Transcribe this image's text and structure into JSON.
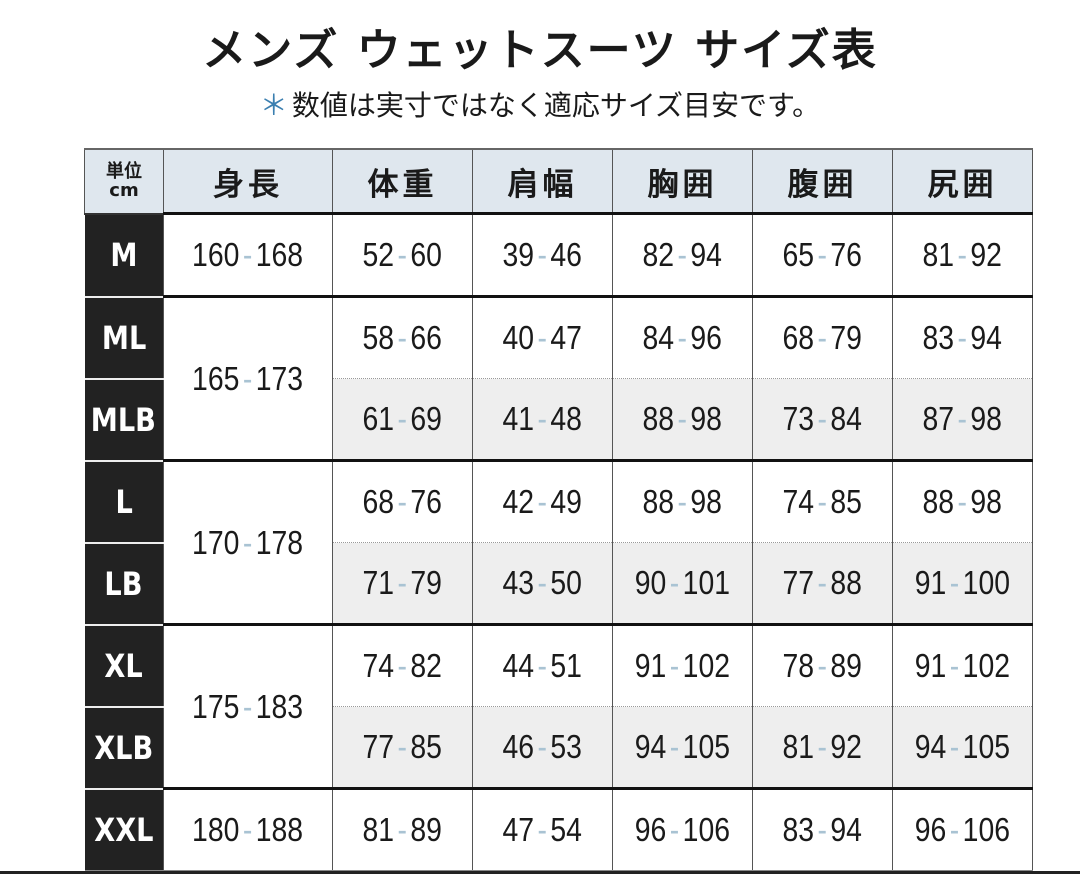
{
  "title": "メンズ ウェットスーツ サイズ表",
  "note": {
    "asterisk": "＊",
    "text": "数値は実寸ではなく適応サイズ目安です。"
  },
  "colors": {
    "size_cell_bg": "#222222",
    "header_bg": "#dfe7ee",
    "dash": "#a9c3d3",
    "sub_row_bg": "#eeeeee"
  },
  "header": {
    "unit_line1": "単位",
    "unit_line2": "cm",
    "columns": [
      "身長",
      "体重",
      "肩幅",
      "胸囲",
      "腹囲",
      "尻囲"
    ]
  },
  "rows": [
    {
      "size": "M",
      "height": {
        "lo": "160",
        "hi": "168"
      },
      "values": [
        {
          "lo": "52",
          "hi": "60"
        },
        {
          "lo": "39",
          "hi": "46"
        },
        {
          "lo": "82",
          "hi": "94"
        },
        {
          "lo": "65",
          "hi": "76"
        },
        {
          "lo": "81",
          "hi": "92"
        }
      ]
    },
    {
      "size": "ML",
      "height": {
        "lo": "165",
        "hi": "173"
      },
      "values": [
        {
          "lo": "58",
          "hi": "66"
        },
        {
          "lo": "40",
          "hi": "47"
        },
        {
          "lo": "84",
          "hi": "96"
        },
        {
          "lo": "68",
          "hi": "79"
        },
        {
          "lo": "83",
          "hi": "94"
        }
      ]
    },
    {
      "size": "MLB",
      "values": [
        {
          "lo": "61",
          "hi": "69"
        },
        {
          "lo": "41",
          "hi": "48"
        },
        {
          "lo": "88",
          "hi": "98"
        },
        {
          "lo": "73",
          "hi": "84"
        },
        {
          "lo": "87",
          "hi": "98"
        }
      ]
    },
    {
      "size": "L",
      "height": {
        "lo": "170",
        "hi": "178"
      },
      "values": [
        {
          "lo": "68",
          "hi": "76"
        },
        {
          "lo": "42",
          "hi": "49"
        },
        {
          "lo": "88",
          "hi": "98"
        },
        {
          "lo": "74",
          "hi": "85"
        },
        {
          "lo": "88",
          "hi": "98"
        }
      ]
    },
    {
      "size": "LB",
      "values": [
        {
          "lo": "71",
          "hi": "79"
        },
        {
          "lo": "43",
          "hi": "50"
        },
        {
          "lo": "90",
          "hi": "101"
        },
        {
          "lo": "77",
          "hi": "88"
        },
        {
          "lo": "91",
          "hi": "100"
        }
      ]
    },
    {
      "size": "XL",
      "height": {
        "lo": "175",
        "hi": "183"
      },
      "values": [
        {
          "lo": "74",
          "hi": "82"
        },
        {
          "lo": "44",
          "hi": "51"
        },
        {
          "lo": "91",
          "hi": "102"
        },
        {
          "lo": "78",
          "hi": "89"
        },
        {
          "lo": "91",
          "hi": "102"
        }
      ]
    },
    {
      "size": "XLB",
      "values": [
        {
          "lo": "77",
          "hi": "85"
        },
        {
          "lo": "46",
          "hi": "53"
        },
        {
          "lo": "94",
          "hi": "105"
        },
        {
          "lo": "81",
          "hi": "92"
        },
        {
          "lo": "94",
          "hi": "105"
        }
      ]
    },
    {
      "size": "XXL",
      "height": {
        "lo": "180",
        "hi": "188"
      },
      "values": [
        {
          "lo": "81",
          "hi": "89"
        },
        {
          "lo": "47",
          "hi": "54"
        },
        {
          "lo": "96",
          "hi": "106"
        },
        {
          "lo": "83",
          "hi": "94"
        },
        {
          "lo": "96",
          "hi": "106"
        }
      ]
    }
  ]
}
